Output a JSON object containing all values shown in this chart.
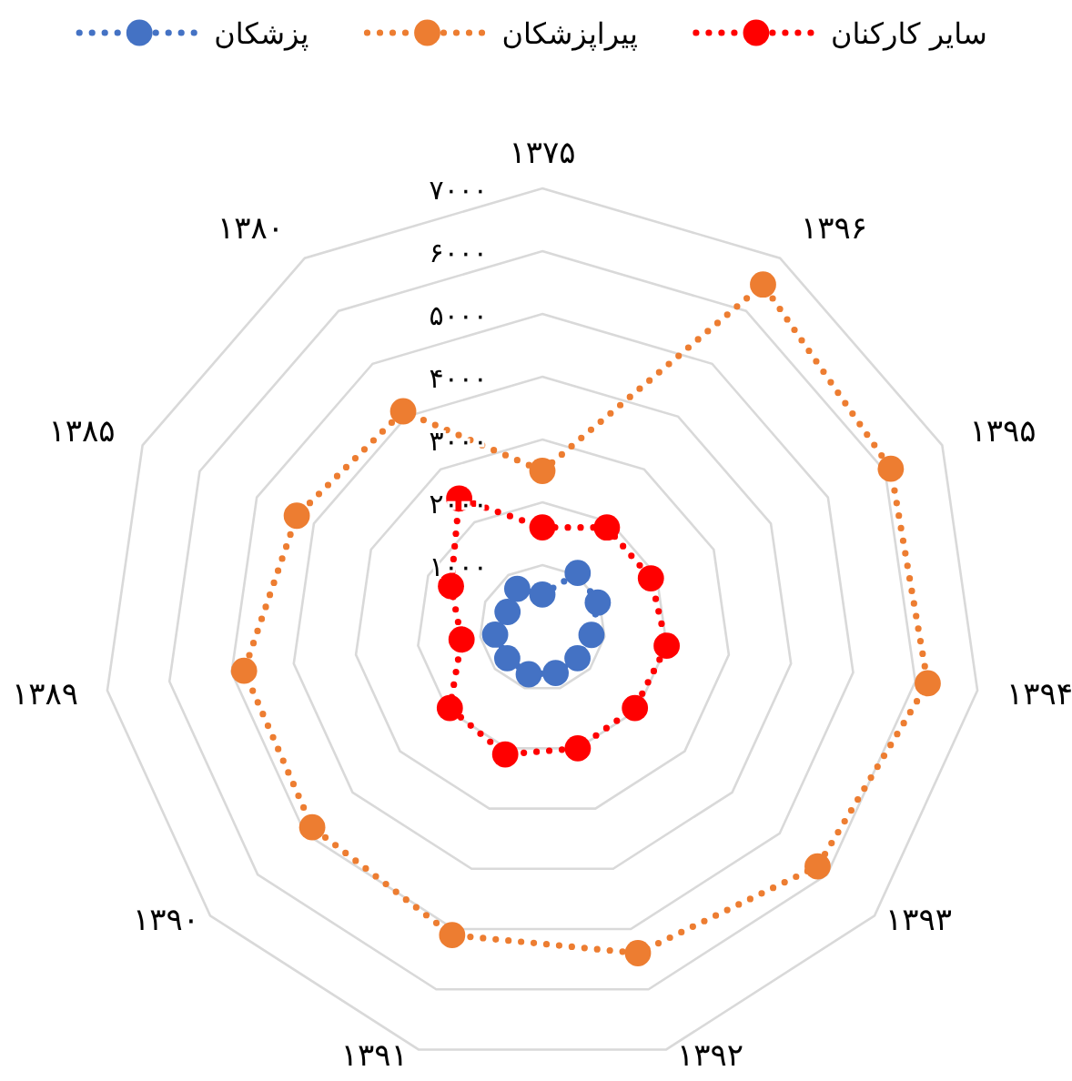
{
  "chart_data": {
    "type": "radar",
    "categories": [
      "۱۳۷۵",
      "۱۳۹۶",
      "۱۳۹۵",
      "۱۳۹۴",
      "۱۳۹۳",
      "۱۳۹۲",
      "۱۳۹۱",
      "۱۳۹۰",
      "۱۳۸۹",
      "۱۳۸۵",
      "۱۳۸۰"
    ],
    "series": [
      {
        "name": "پزشکان",
        "color": "#4472c4",
        "values": [
          530,
          1040,
          970,
          790,
          740,
          750,
          770,
          740,
          760,
          610,
          740
        ]
      },
      {
        "name": "پیراپزشکان",
        "color": "#ed7d31",
        "values": [
          2500,
          6500,
          6100,
          6200,
          5800,
          5400,
          5100,
          4850,
          4800,
          4300,
          4100
        ]
      },
      {
        "name": "سایر کارکنان",
        "color": "#ff0000",
        "values": [
          1600,
          1900,
          1900,
          2000,
          1950,
          2000,
          2100,
          1950,
          1300,
          1600,
          2450
        ]
      }
    ],
    "ylim": [
      0,
      7000
    ],
    "yticks": [
      {
        "value": 1000,
        "label": "۱۰۰۰"
      },
      {
        "value": 2000,
        "label": "۲۰۰۰"
      },
      {
        "value": 3000,
        "label": "۳۰۰۰"
      },
      {
        "value": 4000,
        "label": "۴۰۰۰"
      },
      {
        "value": 5000,
        "label": "۵۰۰۰"
      },
      {
        "value": 6000,
        "label": "۶۰۰۰"
      },
      {
        "value": 7000,
        "label": "۷۰۰۰"
      }
    ],
    "grid": true,
    "legend": "top",
    "marker": "circle",
    "line_style": "dotted"
  }
}
